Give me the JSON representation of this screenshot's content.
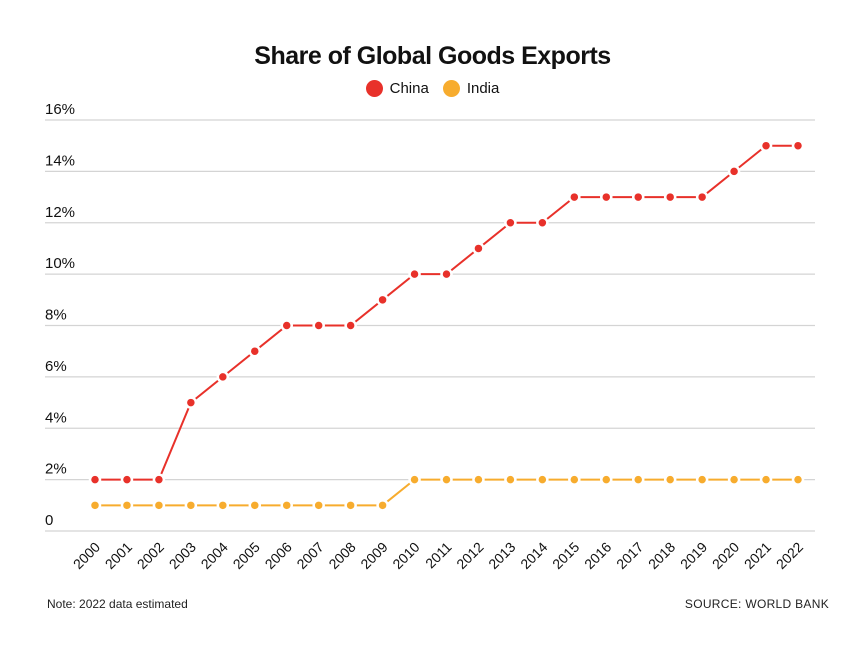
{
  "chart_data": {
    "type": "line",
    "title": "Share of Global Goods Exports",
    "xlabel": "",
    "ylabel": "",
    "x": [
      "2000",
      "2001",
      "2002",
      "2003",
      "2004",
      "2005",
      "2006",
      "2007",
      "2008",
      "2009",
      "2010",
      "2011",
      "2012",
      "2013",
      "2014",
      "2015",
      "2016",
      "2017",
      "2018",
      "2019",
      "2020",
      "2021",
      "2022"
    ],
    "ylim": [
      0,
      16
    ],
    "yticks": [
      0,
      2,
      4,
      6,
      8,
      10,
      12,
      14,
      16
    ],
    "ytick_labels": [
      "0",
      "2%",
      "4%",
      "6%",
      "8%",
      "10%",
      "12%",
      "14%",
      "16%"
    ],
    "grid": true,
    "legend_position": "top-center",
    "series": [
      {
        "name": "China",
        "color": "#e8312a",
        "values": [
          2,
          2,
          2,
          5,
          6,
          7,
          8,
          8,
          8,
          9,
          10,
          10,
          11,
          12,
          12,
          13,
          13,
          13,
          13,
          13,
          14,
          15,
          15
        ]
      },
      {
        "name": "India",
        "color": "#f7ac2e",
        "values": [
          1,
          1,
          1,
          1,
          1,
          1,
          1,
          1,
          1,
          1,
          2,
          2,
          2,
          2,
          2,
          2,
          2,
          2,
          2,
          2,
          2,
          2,
          2
        ]
      }
    ]
  },
  "footer": {
    "note": "Note: 2022 data estimated",
    "source": "SOURCE: WORLD BANK"
  }
}
